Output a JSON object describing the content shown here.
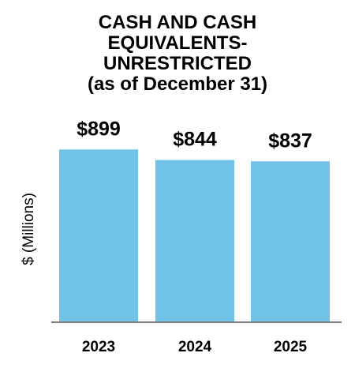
{
  "chart_data": {
    "type": "bar",
    "title_lines": [
      "CASH AND CASH",
      "EQUIVALENTS-",
      "UNRESTRICTED"
    ],
    "subtitle": "(as of December 31)",
    "ylabel": "$ (Millions)",
    "xlabel": "",
    "categories": [
      "2023",
      "2024",
      "2025"
    ],
    "values": [
      899,
      844,
      837
    ],
    "data_labels": [
      "$899",
      "$844",
      "$837"
    ],
    "ylim": [
      0,
      1000
    ],
    "grid": false,
    "bar_color": "#71C3E8",
    "axis_color": "#7F7F7F"
  }
}
